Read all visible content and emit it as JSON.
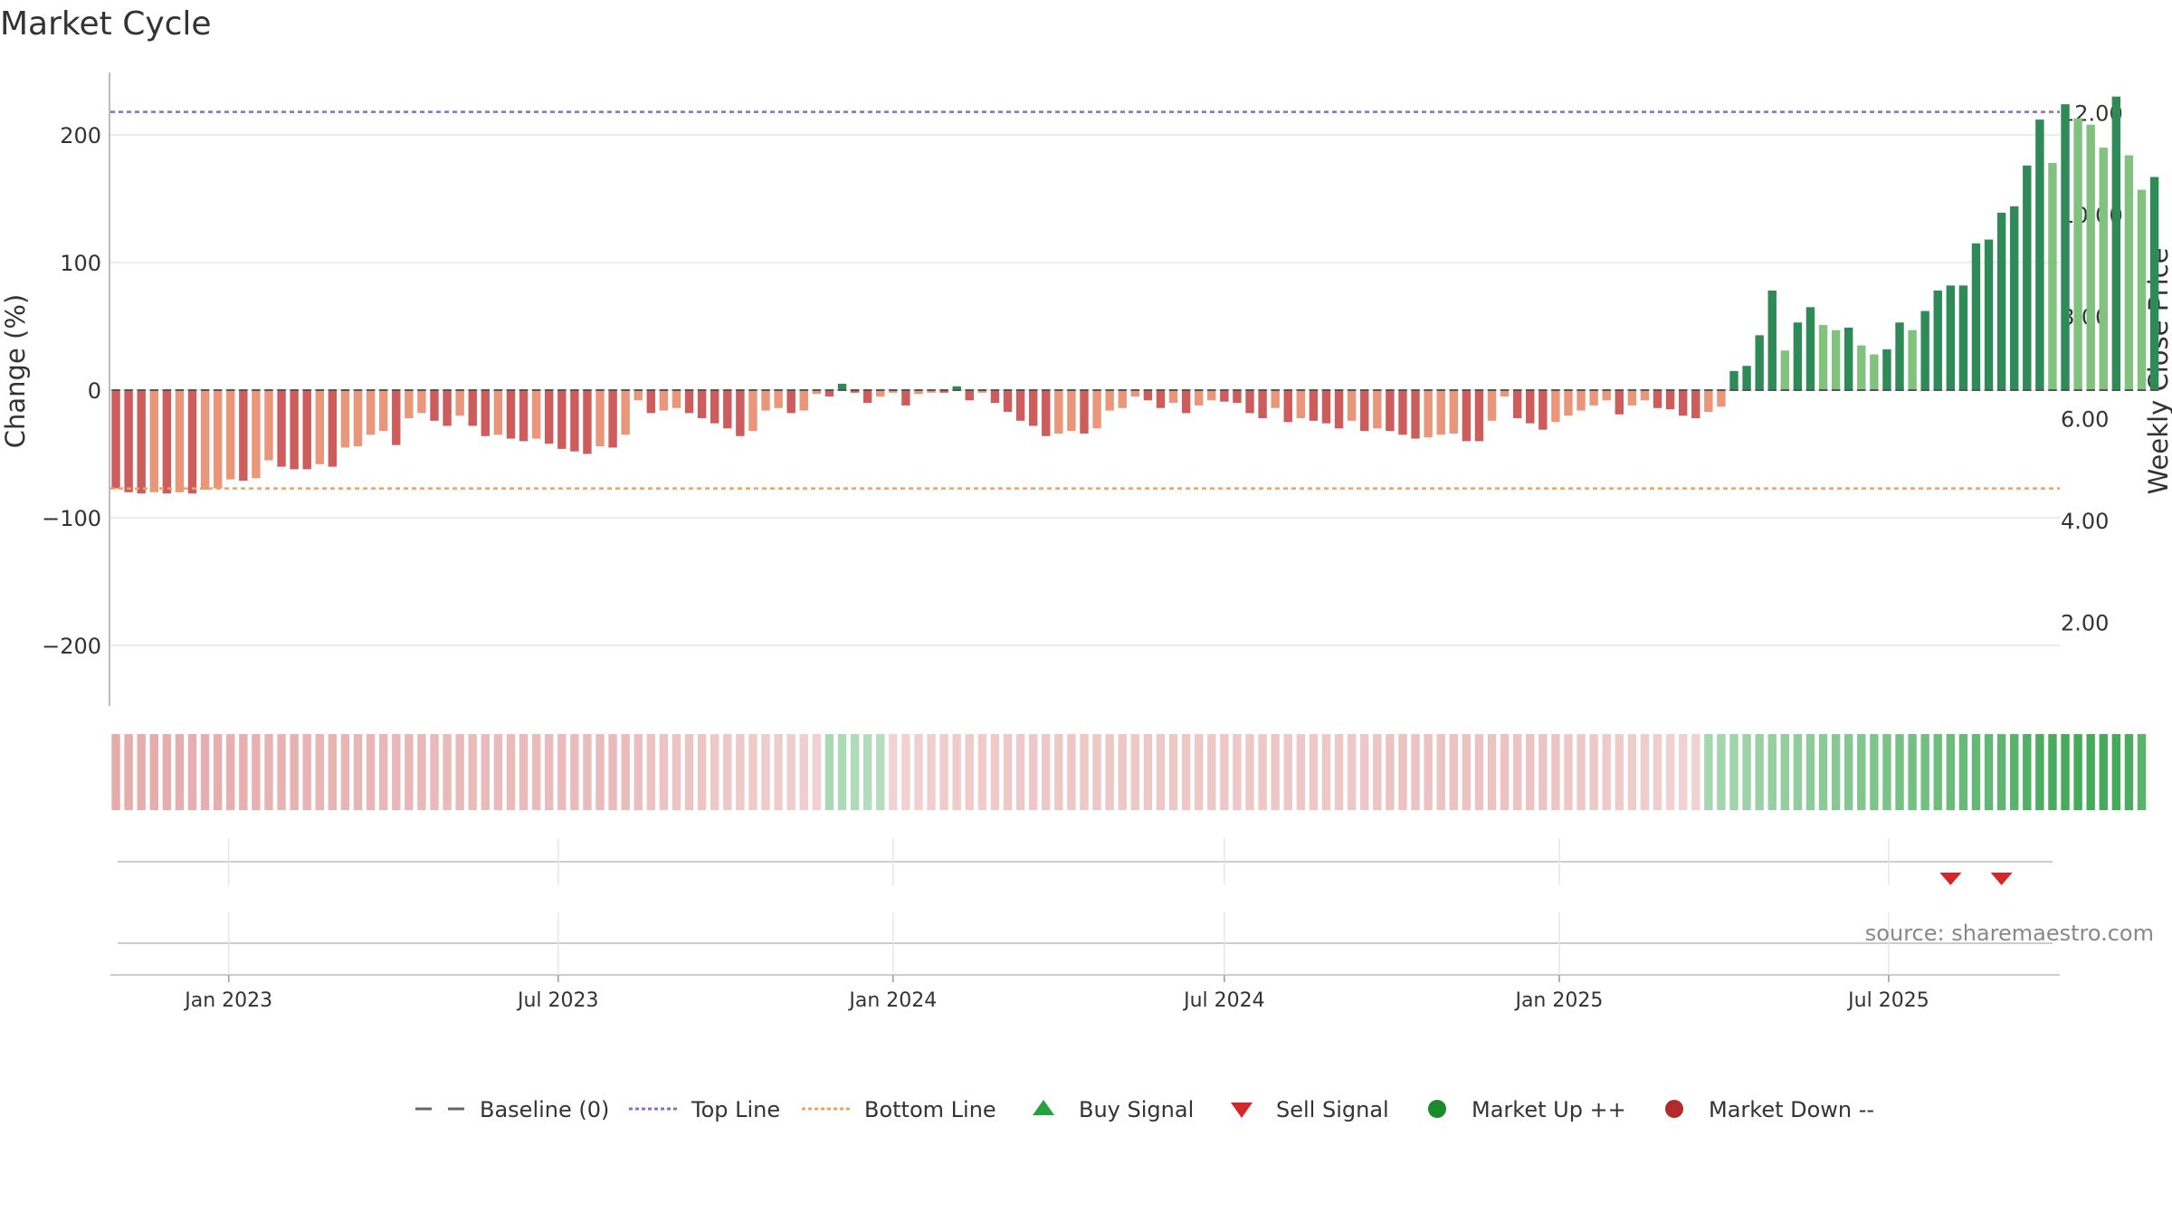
{
  "chart_data": {
    "type": "bar",
    "title": "Market Cycle",
    "ylabel": "Change (%)",
    "y2label": "Weekly Close Price",
    "ylim": [
      -250,
      250
    ],
    "y2lim": [
      0,
      12.4
    ],
    "yticks": [
      200,
      100,
      0,
      -100,
      -200
    ],
    "ytick_labels": [
      "200",
      "100",
      "0",
      "−100",
      "−200"
    ],
    "y2ticks": [
      12,
      10,
      8,
      6,
      4,
      2
    ],
    "y2tick_labels": [
      "12.00",
      "10.00",
      "8.00",
      "6.00",
      "4.00",
      "2.00"
    ],
    "top_line": 218,
    "bottom_line": -77,
    "x_start": "2022-10-28",
    "x_end": "2025-10-03",
    "week_start": "2022-10-31",
    "xticks": [
      "2023-01-01",
      "2023-07-01",
      "2024-01-01",
      "2024-07-01",
      "2025-01-01",
      "2025-07-01"
    ],
    "xtick_labels": [
      "Jan 2023",
      "Jul 2023",
      "Jan 2024",
      "Jul 2024",
      "Jan 2025",
      "Jul 2025"
    ],
    "values": [
      -77,
      -80,
      -81,
      -80,
      -81,
      -80,
      -81,
      -78,
      -77,
      -70,
      -71,
      -69,
      -55,
      -60,
      -62,
      -62,
      -58,
      -60,
      -45,
      -44,
      -35,
      -32,
      -43,
      -22,
      -18,
      -24,
      -28,
      -20,
      -28,
      -36,
      -35,
      -38,
      -40,
      -38,
      -42,
      -46,
      -48,
      -50,
      -44,
      -45,
      -35,
      -8,
      -18,
      -16,
      -14,
      -18,
      -22,
      -26,
      -30,
      -36,
      -32,
      -16,
      -14,
      -18,
      -16,
      -3,
      -5,
      5,
      -2,
      -10,
      -5,
      -2,
      -12,
      -3,
      -2,
      -2,
      3,
      -8,
      -2,
      -10,
      -17,
      -24,
      -28,
      -36,
      -34,
      -32,
      -34,
      -30,
      -16,
      -14,
      -5,
      -8,
      -14,
      -10,
      -18,
      -12,
      -8,
      -9,
      -10,
      -18,
      -22,
      -14,
      -25,
      -22,
      -24,
      -26,
      -30,
      -24,
      -32,
      -30,
      -32,
      -35,
      -38,
      -37,
      -35,
      -34,
      -40,
      -40,
      -24,
      -5,
      -22,
      -26,
      -31,
      -25,
      -20,
      -16,
      -12,
      -8,
      -19,
      -12,
      -8,
      -14,
      -15,
      -20,
      -22,
      -17,
      -13,
      15,
      19,
      43,
      78,
      31,
      53,
      65,
      51,
      47,
      49,
      35,
      28,
      32,
      53,
      47,
      62,
      78,
      82,
      82,
      115,
      118,
      139,
      144,
      176,
      212,
      178,
      224,
      213,
      208,
      190,
      230,
      184,
      157,
      167
    ],
    "ranking": [
      0.88,
      0.87,
      0.87,
      0.86,
      0.86,
      0.85,
      0.84,
      0.84,
      0.83,
      0.82,
      0.81,
      0.8,
      0.79,
      0.78,
      0.77,
      0.76,
      0.75,
      0.74,
      0.73,
      0.72,
      0.71,
      0.7,
      0.69,
      0.68,
      0.67,
      0.66,
      0.65,
      0.64,
      0.63,
      0.62,
      0.62,
      0.62,
      0.62,
      0.62,
      0.62,
      0.62,
      0.62,
      0.62,
      0.62,
      0.62,
      0.6,
      0.55,
      0.52,
      0.5,
      0.48,
      0.46,
      0.44,
      0.42,
      0.4,
      0.38,
      0.36,
      0.34,
      0.32,
      0.3,
      0.28,
      0.25,
      -0.28,
      -0.26,
      -0.24,
      -0.22,
      -0.2,
      0.22,
      0.24,
      0.26,
      0.28,
      0.3,
      0.32,
      0.34,
      0.35,
      0.36,
      0.37,
      0.38,
      0.39,
      0.4,
      0.4,
      0.4,
      0.4,
      0.4,
      0.4,
      0.4,
      0.4,
      0.4,
      0.4,
      0.4,
      0.4,
      0.4,
      0.4,
      0.4,
      0.4,
      0.4,
      0.4,
      0.4,
      0.4,
      0.4,
      0.4,
      0.4,
      0.4,
      0.4,
      0.4,
      0.45,
      0.5,
      0.5,
      0.5,
      0.5,
      0.5,
      0.5,
      0.5,
      0.5,
      0.5,
      0.5,
      0.5,
      0.48,
      0.46,
      0.44,
      0.42,
      0.4,
      0.38,
      0.36,
      0.34,
      0.32,
      0.3,
      0.28,
      0.26,
      0.24,
      0.22,
      -0.3,
      -0.32,
      -0.34,
      -0.36,
      -0.38,
      -0.4,
      -0.42,
      -0.44,
      -0.46,
      -0.48,
      -0.5,
      -0.52,
      -0.54,
      -0.56,
      -0.58,
      -0.6,
      -0.62,
      -0.64,
      -0.66,
      -0.68,
      -0.7,
      -0.72,
      -0.74,
      -0.76,
      -0.8,
      -0.84,
      -0.88,
      -0.9,
      -0.92,
      -0.92,
      -0.92,
      -0.92,
      -0.92,
      -0.88,
      -0.8
    ],
    "sell_signals": [
      "2025-08-04",
      "2025-09-01"
    ],
    "source": "source: sharemaestro.com",
    "legend": [
      {
        "label": "Baseline (0)",
        "marker": "dash",
        "color": "#666666"
      },
      {
        "label": "Top Line",
        "marker": "dotted-line",
        "color": "#8e6bbf"
      },
      {
        "label": "Bottom Line",
        "marker": "dotted-line",
        "color": "#f0a060"
      },
      {
        "label": "Buy Signal",
        "marker": "triangle-up",
        "color": "#27a040"
      },
      {
        "label": "Sell Signal",
        "marker": "triangle-down",
        "color": "#d62728"
      },
      {
        "label": "Market Up ++",
        "marker": "circle",
        "color": "#1a8a2a"
      },
      {
        "label": "Market Down --",
        "marker": "circle",
        "color": "#b22a2a"
      }
    ],
    "colors": {
      "pos_dark": "#2e8b57",
      "pos_light": "#82c27f",
      "neg_dark": "#cd5c5c",
      "neg_light": "#e9967a",
      "top_line": "#8e6bbf",
      "bottom_line": "#f0a060",
      "grid": "#e6e6e6",
      "sell": "#d62728"
    }
  }
}
